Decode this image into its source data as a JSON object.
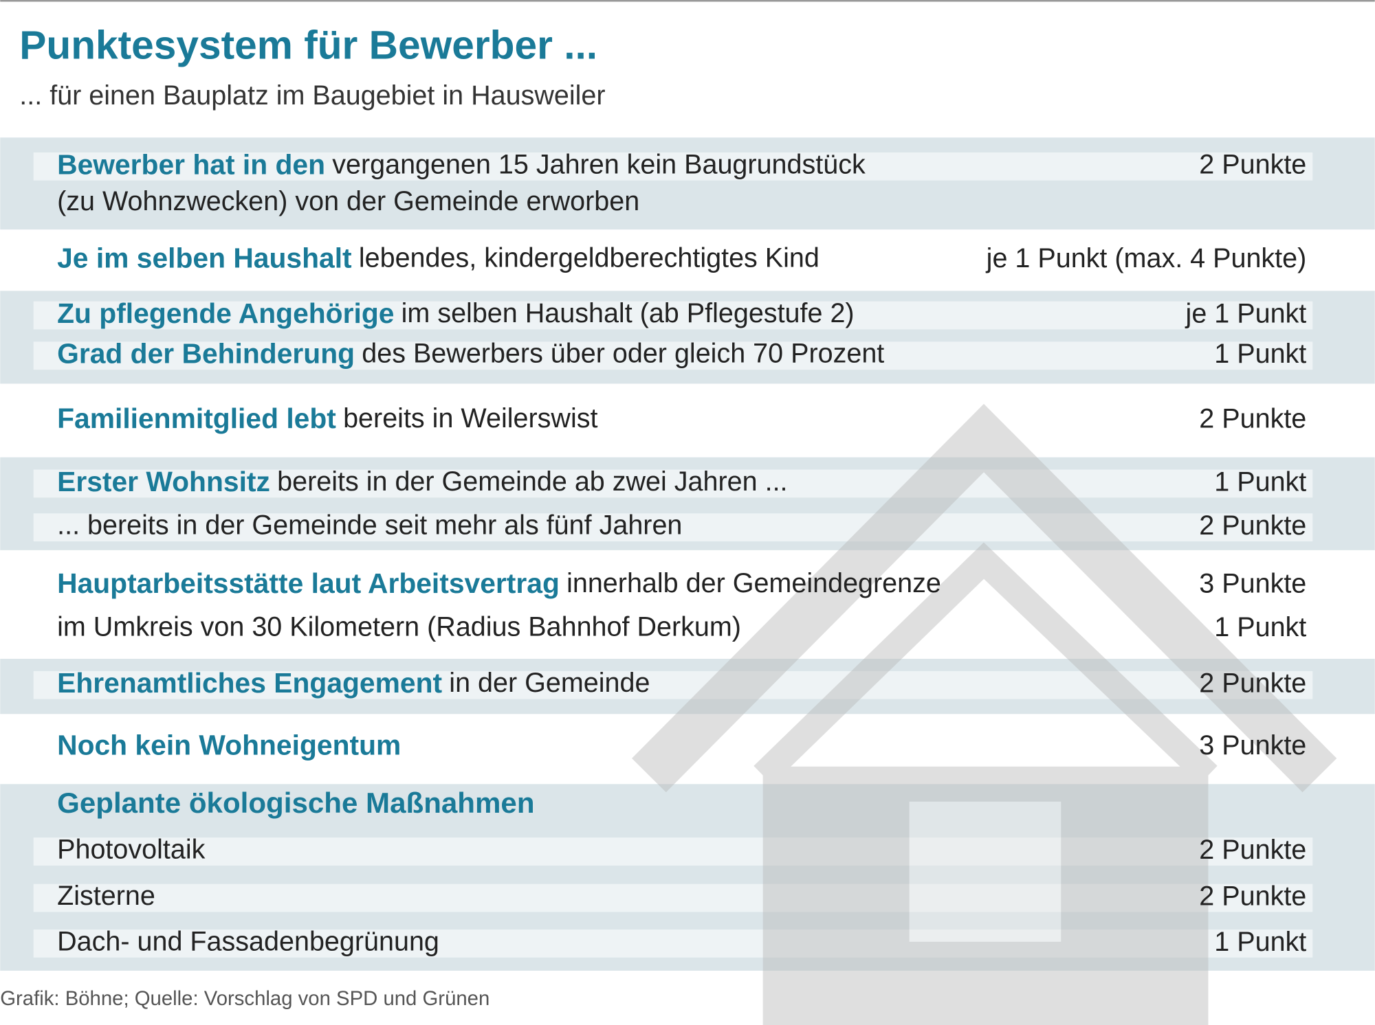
{
  "header": {
    "title": "Punktesystem für Bewerber ...",
    "subtitle": "... für einen Bauplatz im Baugebiet in Hausweiler"
  },
  "lines": [
    {
      "highlight": "Bewerber hat in den",
      "text": "vergangenen 15 Jahren kein Baugrundstück",
      "points": "2 Punkte"
    },
    {
      "text": "(zu Wohnzwecken) von der Gemeinde erworben"
    },
    {
      "highlight": "Je im selben Haushalt",
      "text": "lebendes, kindergeldberechtigtes Kind",
      "points": "je 1 Punkt (max. 4 Punkte)"
    },
    {
      "highlight": "Zu pflegende Angehörige",
      "text": "im selben Haushalt (ab Pflegestufe 2)",
      "points": "je 1 Punkt"
    },
    {
      "highlight": "Grad der Behinderung",
      "text": "des Bewerbers über oder gleich 70 Prozent",
      "points": "1 Punkt"
    },
    {
      "highlight": "Familienmitglied lebt",
      "text": "bereits in Weilerswist",
      "points": "2 Punkte"
    },
    {
      "highlight": "Erster Wohnsitz",
      "text": "bereits in der Gemeinde ab zwei Jahren ...",
      "points": "1 Punkt"
    },
    {
      "text": "... bereits in der Gemeinde seit mehr als fünf Jahren",
      "points": "2 Punkte"
    },
    {
      "highlight": "Hauptarbeitsstätte laut Arbeitsvertrag",
      "text": "innerhalb der Gemeindegrenze",
      "points": "3 Punkte"
    },
    {
      "text": "im Umkreis von 30 Kilometern (Radius Bahnhof Derkum)",
      "points": "1 Punkt"
    },
    {
      "highlight": "Ehrenamtliches Engagement",
      "text": "in der Gemeinde",
      "points": "2 Punkte"
    },
    {
      "highlight": "Noch kein Wohneigentum",
      "points": "3 Punkte"
    },
    {
      "highlight": "Geplante ökologische Maßnahmen"
    },
    {
      "text": "Photovoltaik",
      "points": "2 Punkte"
    },
    {
      "text": "Zisterne",
      "points": "2 Punkte"
    },
    {
      "text": "Dach- und Fassadenbegrünung",
      "points": "1 Punkt"
    }
  ],
  "footer": {
    "source": "Grafik: Böhne; Quelle: Vorschlag von SPD und Grünen"
  }
}
